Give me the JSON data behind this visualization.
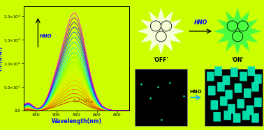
{
  "background_color": "#CCFF00",
  "plot_bg_color": "#CCFF00",
  "xlabel": "Wavelength(nm)",
  "ylabel": "F.I.(a.u.)",
  "xlim": [
    420,
    680
  ],
  "ylim": [
    0,
    22000
  ],
  "yticks": [
    0,
    5000,
    10000,
    15000,
    20000
  ],
  "xticks": [
    450,
    500,
    550,
    600,
    650
  ],
  "peak_wavelength": 545,
  "curve_colors": [
    "#CC0000",
    "#DD2200",
    "#EE4400",
    "#FF6600",
    "#FF8800",
    "#FFAA00",
    "#FFCC00",
    "#DDEE00",
    "#AAFF00",
    "#66FF00",
    "#33FF33",
    "#00FFAA",
    "#00EEFF",
    "#00BBFF",
    "#0088FF",
    "#0055FF",
    "#2200FF",
    "#6600CC",
    "#AA00AA",
    "#FF00FF"
  ],
  "peak_intensities": [
    2000,
    2800,
    3600,
    4500,
    5400,
    6300,
    7200,
    8200,
    9200,
    10200,
    11200,
    12200,
    13200,
    14300,
    15400,
    16500,
    17500,
    18500,
    19500,
    20500
  ],
  "off_label": "'OFF'",
  "on_label": "'ON'",
  "hno_label": "HNO",
  "cell_color": "#00FFCC",
  "arrow_color": "#00AAFF"
}
